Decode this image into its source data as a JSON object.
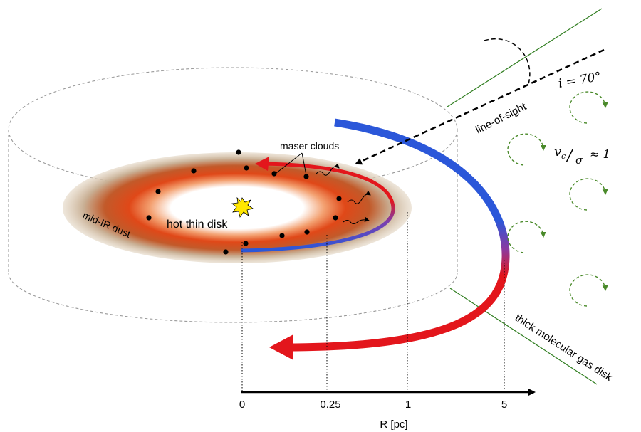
{
  "labels": {
    "maser_clouds": "maser clouds",
    "line_of_sight": "line-of-sight",
    "inclination": "i = 70°",
    "ratio_v": "v",
    "ratio_v_sub": "c",
    "ratio_sigma": "σ",
    "ratio_approx": "≈ 1",
    "mid_ir_dust": "mid-IR dust",
    "hot_thin_disk": "hot thin disk",
    "thick_molecular": "thick molecular gas disk"
  },
  "axis": {
    "title": "R [pc]",
    "ticks": [
      "0",
      "0.25",
      "1",
      "5"
    ]
  },
  "colors": {
    "approaching": "#2b57d9",
    "receding": "#e3161c",
    "dust_outer": "#c8b59a",
    "dust_inner": "#e25a20",
    "turbulence": "#4a8a2a",
    "los_line": "#2f7d1f",
    "cylinder": "#9a9a9a"
  }
}
